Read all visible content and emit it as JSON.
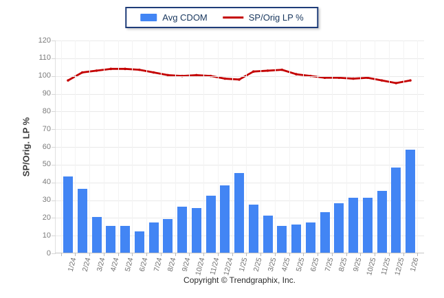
{
  "legend": {
    "items": [
      {
        "label": "Avg CDOM",
        "type": "bar",
        "color": "#4285f4"
      },
      {
        "label": "SP/Orig LP %",
        "type": "line",
        "color": "#c40000"
      }
    ]
  },
  "footer": {
    "copyright": "Copyright © Trendgraphix, Inc."
  },
  "chart_data": {
    "type": "bar",
    "title": "",
    "xlabel": "",
    "ylabel": "SP/Orig. LP %",
    "ylim": [
      0,
      120
    ],
    "ytick_step": 10,
    "grid": true,
    "legend_position": "top-center",
    "xtick_rotation": -75,
    "categories": [
      "1/24",
      "2/24",
      "3/24",
      "4/24",
      "5/24",
      "6/24",
      "7/24",
      "8/24",
      "9/24",
      "10/24",
      "11/24",
      "12/24",
      "1/25",
      "2/25",
      "3/25",
      "4/25",
      "5/25",
      "6/25",
      "7/25",
      "8/25",
      "9/25",
      "10/25",
      "11/25",
      "12/25",
      "1/26"
    ],
    "series": [
      {
        "name": "Avg CDOM",
        "type": "bar",
        "color": "#4285f4",
        "values": [
          43,
          36,
          20,
          15,
          15,
          12,
          17,
          19,
          26,
          25,
          32,
          38,
          45,
          27,
          21,
          15,
          16,
          17,
          23,
          28,
          31,
          31,
          35,
          48,
          58
        ]
      },
      {
        "name": "SP/Orig LP %",
        "type": "line",
        "color": "#c40000",
        "values": [
          97.5,
          102,
          103,
          104,
          104,
          103.5,
          102,
          100.5,
          100,
          100.5,
          100,
          98.5,
          98,
          102.5,
          103,
          103.5,
          101,
          100,
          99,
          99,
          98.5,
          99,
          97.5,
          96,
          97.5
        ]
      }
    ]
  }
}
